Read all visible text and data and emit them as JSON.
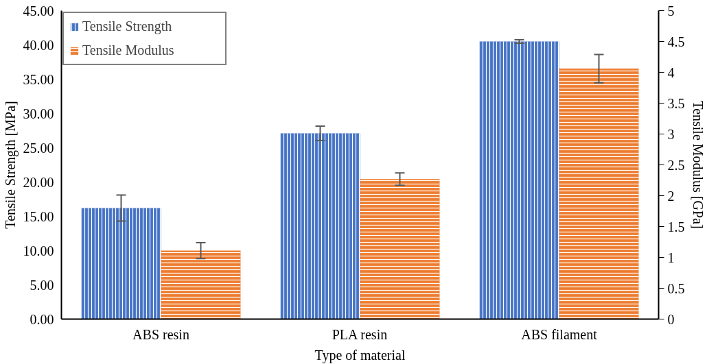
{
  "chart_data": {
    "type": "bar",
    "xlabel": "Type of material",
    "ylabel": "Tensile Strength [MPa]",
    "y2label": "Tensile Modulus [GPa]",
    "categories": [
      "ABS resin",
      "PLA resin",
      "ABS filament"
    ],
    "series": [
      {
        "name": "Tensile Strength",
        "color": "#4472c4",
        "values": [
          16.2,
          27.1,
          40.5
        ],
        "errors": [
          1.9,
          1.05,
          0.24
        ]
      },
      {
        "name": "Tensile Modulus",
        "color": "#ed7d31",
        "axis": "y2",
        "values": [
          1.11,
          2.27,
          4.06
        ],
        "errors": [
          0.13,
          0.1,
          0.23
        ]
      }
    ],
    "ylim": [
      0,
      45
    ],
    "yticks": [
      {
        "value": 0,
        "label": "0.00"
      },
      {
        "value": 5,
        "label": "5.00"
      },
      {
        "value": 10,
        "label": "10.00"
      },
      {
        "value": 15,
        "label": "15.00"
      },
      {
        "value": 20,
        "label": "20.00"
      },
      {
        "value": 25,
        "label": "25.00"
      },
      {
        "value": 30,
        "label": "30.00"
      },
      {
        "value": 35,
        "label": "35.00"
      },
      {
        "value": 40,
        "label": "40.00"
      },
      {
        "value": 45,
        "label": "45.00"
      }
    ],
    "y2lim": [
      0,
      5
    ],
    "y2ticks": [
      0,
      0.5,
      1,
      1.5,
      2,
      2.5,
      3,
      3.5,
      4,
      4.5,
      5
    ],
    "grid": false,
    "legend": "top left"
  }
}
